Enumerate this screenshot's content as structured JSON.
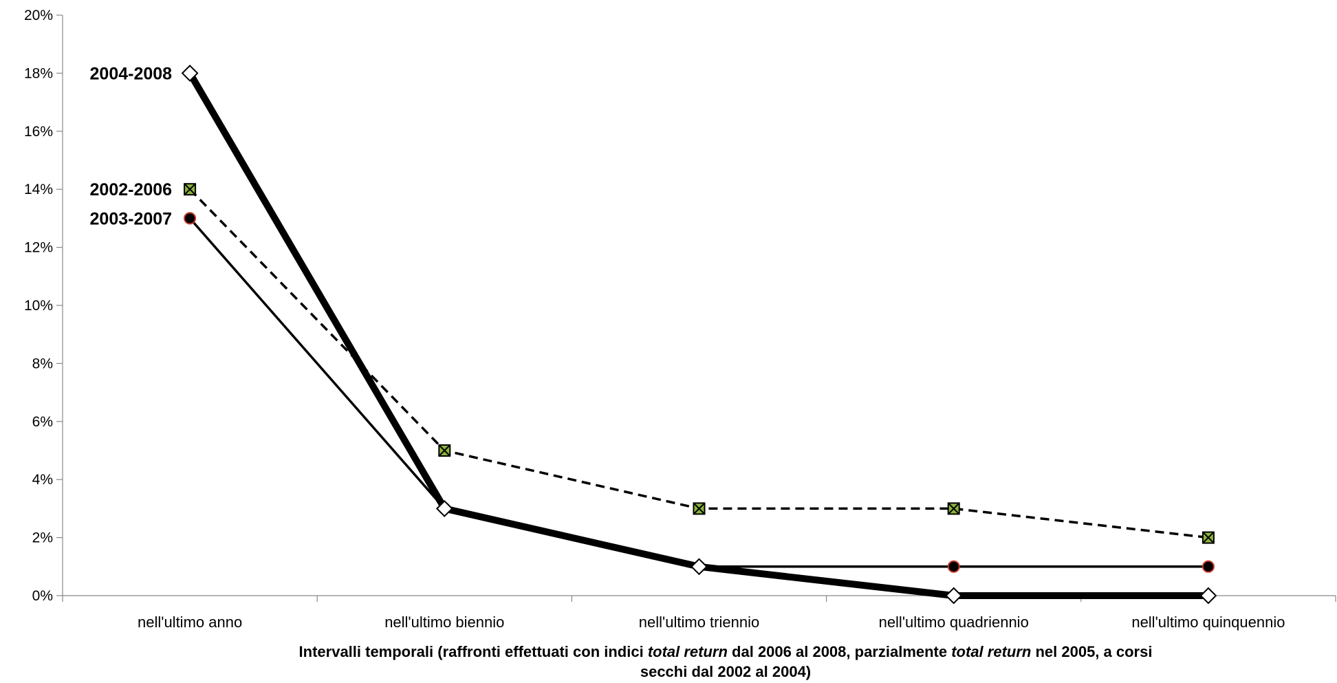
{
  "chart_data": {
    "type": "line",
    "categories": [
      "nell'ultimo anno",
      "nell'ultimo biennio",
      "nell'ultimo triennio",
      "nell'ultimo quadriennio",
      "nell'ultimo quinquennio"
    ],
    "ylim": [
      0,
      20
    ],
    "y_ticks": [
      "0%",
      "2%",
      "4%",
      "6%",
      "8%",
      "10%",
      "12%",
      "14%",
      "16%",
      "18%",
      "20%"
    ],
    "xlabel": {
      "line1_a": "Intervalli temporali (raffronti effettuati con indici ",
      "line1_b": "total return",
      "line1_c": " dal 2006 al 2008, parzialmente ",
      "line1_d": "total return",
      "line1_e": " nel 2005, a corsi",
      "line2": "secchi dal 2002 al 2004)"
    },
    "ylabel": "",
    "title": "",
    "grid": false,
    "legend": "none",
    "series": [
      {
        "name": "2002-2006",
        "values": [
          14,
          5,
          3,
          3,
          2
        ],
        "line_style": "dashed",
        "marker": "square-x",
        "color": "#000000",
        "marker_fill": "#8cb43c"
      },
      {
        "name": "2003-2007",
        "values": [
          13,
          3,
          1,
          1,
          1
        ],
        "line_style": "solid-medium",
        "marker": "circle",
        "color": "#000000",
        "marker_fill": "#000000",
        "marker_stroke": "#c0392b"
      },
      {
        "name": "2004-2008",
        "values": [
          18,
          3,
          1,
          0,
          0
        ],
        "line_style": "solid-thick",
        "marker": "diamond",
        "color": "#000000",
        "marker_fill": "#ffffff"
      }
    ]
  }
}
